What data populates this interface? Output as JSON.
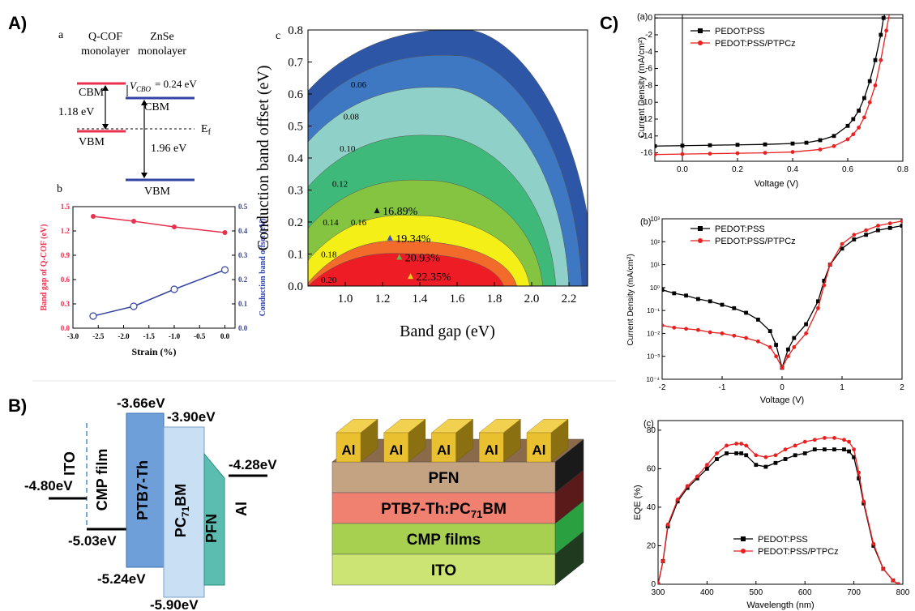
{
  "panel_labels": {
    "A": "A)",
    "B": "B)",
    "C": "C)"
  },
  "figA_a": {
    "label": "a",
    "col1": [
      "Q-COF",
      "monolayer"
    ],
    "col2": [
      "ZnSe",
      "monolayer"
    ],
    "cbm": "CBM",
    "vbm": "VBM",
    "vcbo": "= 0.24 eV",
    "gap1": "1.18 eV",
    "gap2": "1.96 eV",
    "ef": "E"
  },
  "figA_b": {
    "label": "b",
    "chart_data": {
      "type": "line",
      "xlabel": "Strain (%)",
      "ylabel_left": "Band gap of Q-COF (eV)",
      "ylabel_right": "Conduction band offset (eV)",
      "xlim": [
        -3.0,
        0.2
      ],
      "ylim_left": [
        0.0,
        1.5
      ],
      "ylim_right": [
        0.0,
        0.5
      ],
      "xticks": [
        "-3.0",
        "-2.5",
        "-2.0",
        "-1.5",
        "-1.0",
        "-0.5",
        "0.0"
      ],
      "yticks_left": [
        "0.0",
        "0.3",
        "0.6",
        "0.9",
        "1.2",
        "1.5"
      ],
      "yticks_right": [
        "0.0",
        "0.1",
        "0.2",
        "0.3",
        "0.4",
        "0.5"
      ],
      "series": [
        {
          "axis": "left",
          "x": [
            -2.6,
            -1.8,
            -1.0,
            0.0
          ],
          "y": [
            1.38,
            1.32,
            1.25,
            1.18
          ],
          "color": "#e8304f",
          "marker": "filled-circle"
        },
        {
          "axis": "right",
          "x": [
            -2.6,
            -1.8,
            -1.0,
            0.0
          ],
          "y": [
            0.05,
            0.09,
            0.16,
            0.24
          ],
          "color": "#3444a4",
          "marker": "open-circle"
        }
      ]
    }
  },
  "figA_c": {
    "label": "c",
    "chart_data": {
      "type": "heatmap",
      "xlabel": "Band gap (eV)",
      "ylabel": "Conduction band offset (eV)",
      "xlim": [
        0.8,
        2.3
      ],
      "ylim": [
        0.0,
        0.8
      ],
      "xticks": [
        "1.0",
        "1.2",
        "1.4",
        "1.6",
        "1.8",
        "2.0",
        "2.2"
      ],
      "yticks": [
        "0.0",
        "0.1",
        "0.2",
        "0.3",
        "0.4",
        "0.5",
        "0.6",
        "0.7",
        "0.8"
      ],
      "levels": [
        {
          "peak_x": 1.37,
          "peak_y": 0.1,
          "color": "#ee1c25"
        },
        {
          "peak_x": 1.37,
          "peak_y": 0.14,
          "color": "#f26b2b"
        },
        {
          "peak_x": 1.4,
          "peak_y": 0.22,
          "color": "#f5ef18"
        },
        {
          "peak_x": 1.45,
          "peak_y": 0.33,
          "color": "#85c441"
        },
        {
          "peak_x": 1.5,
          "peak_y": 0.47,
          "color": "#3fb97a"
        },
        {
          "peak_x": 1.55,
          "peak_y": 0.62,
          "color": "#8fd1c8"
        },
        {
          "peak_x": 1.6,
          "peak_y": 0.72,
          "color": "#3f78c2"
        },
        {
          "peak_x": 1.65,
          "peak_y": 0.8,
          "color": "#2d56a6"
        }
      ],
      "contour_labels": [
        {
          "text": "0.20",
          "x": 0.87,
          "y": 0.01
        },
        {
          "text": "0.18",
          "x": 0.87,
          "y": 0.09
        },
        {
          "text": "0.16",
          "x": 1.03,
          "y": 0.19
        },
        {
          "text": "0.14",
          "x": 0.88,
          "y": 0.19
        },
        {
          "text": "0.12",
          "x": 0.93,
          "y": 0.31
        },
        {
          "text": "0.10",
          "x": 0.97,
          "y": 0.42
        },
        {
          "text": "0.08",
          "x": 0.99,
          "y": 0.52
        },
        {
          "text": "0.06",
          "x": 1.03,
          "y": 0.62
        }
      ],
      "annotations": [
        {
          "text": "16.89%",
          "x": 1.17,
          "y": 0.235,
          "marker_color": "#111111"
        },
        {
          "text": "19.34%",
          "x": 1.24,
          "y": 0.15,
          "marker_color": "#3b4fc4"
        },
        {
          "text": "20.93%",
          "x": 1.29,
          "y": 0.09,
          "marker_color": "#5dbb4a"
        },
        {
          "text": "22.35%",
          "x": 1.35,
          "y": 0.03,
          "marker_color": "#e6d020"
        }
      ]
    }
  },
  "figB_left": {
    "ito": "ITO",
    "cmp": "CMP film",
    "ptb7": "PTB7-Th",
    "pc71": "PC",
    "pc71_sub": "71",
    "pc71_tail": "BM",
    "pfn": "PFN",
    "al": "Al",
    "levels": {
      "ito": "-4.80eV",
      "cmp": "-5.03eV",
      "ptb7_top": "-3.66eV",
      "pc71_top": "-3.90eV",
      "ptb7_bottom": "-5.24eV",
      "pc71_bottom": "-5.90eV",
      "al": "-4.28eV"
    }
  },
  "figB_right": {
    "electrodes": [
      "Al",
      "Al",
      "Al",
      "Al",
      "Al"
    ],
    "layers": [
      {
        "text": "PFN",
        "color": "#c4a383"
      },
      {
        "text": "PTB7-Th:PC",
        "sub": "71",
        "tail": "BM",
        "color": "#f08070"
      },
      {
        "text": "CMP films",
        "color": "#a8d050"
      },
      {
        "text": "ITO",
        "color": "#cce474"
      }
    ]
  },
  "figC_a": {
    "label": "(a)",
    "chart_data": {
      "type": "line",
      "xlabel": "Voltage (V)",
      "ylabel": "Current Density (mA/cm²)",
      "xlim": [
        -0.1,
        0.8
      ],
      "ylim": [
        -17,
        0.4
      ],
      "xticks": [
        "0.0",
        "0.2",
        "0.4",
        "0.6",
        "0.8"
      ],
      "yticks": [
        "0",
        "-2",
        "-4",
        "-6",
        "-8",
        "-10",
        "-12",
        "-14",
        "-16"
      ],
      "legend": "top-left",
      "series": [
        {
          "name": "PEDOT:PSS",
          "color": "#000000",
          "marker": "square",
          "x": [
            -0.1,
            0.0,
            0.1,
            0.2,
            0.3,
            0.4,
            0.45,
            0.5,
            0.55,
            0.6,
            0.62,
            0.64,
            0.66,
            0.68,
            0.7,
            0.72,
            0.73,
            0.75
          ],
          "y": [
            -15.2,
            -15.15,
            -15.1,
            -15.05,
            -15.0,
            -14.9,
            -14.8,
            -14.5,
            -14.0,
            -12.8,
            -12.0,
            -11.0,
            -9.5,
            -7.5,
            -5.0,
            -2.0,
            0.0,
            2.0
          ]
        },
        {
          "name": "PEDOT:PSS/PTPCz",
          "color": "#e82020",
          "marker": "circle",
          "x": [
            -0.1,
            0.0,
            0.1,
            0.2,
            0.3,
            0.4,
            0.5,
            0.55,
            0.6,
            0.62,
            0.64,
            0.66,
            0.68,
            0.7,
            0.72,
            0.74,
            0.76
          ],
          "y": [
            -16.2,
            -16.15,
            -16.1,
            -16.05,
            -16.0,
            -15.9,
            -15.6,
            -15.2,
            -14.4,
            -13.8,
            -13.0,
            -11.8,
            -10.0,
            -8.0,
            -5.0,
            -1.5,
            2.0
          ]
        }
      ]
    }
  },
  "figC_b": {
    "label": "(b)",
    "chart_data": {
      "type": "line",
      "xlabel": "Voltage (V)",
      "ylabel": "Current Density (mA/cm²)",
      "xlim": [
        -2,
        2
      ],
      "ylim_log10": [
        -4,
        3
      ],
      "xticks": [
        "-2",
        "-1",
        "0",
        "1",
        "2"
      ],
      "yticks": [
        "10⁻⁴",
        "10⁻³",
        "10⁻²",
        "10⁻¹",
        "10⁰",
        "10¹",
        "10²",
        "10³"
      ],
      "legend": "top-left",
      "series": [
        {
          "name": "PEDOT:PSS",
          "color": "#000000",
          "marker": "square",
          "x": [
            -2.0,
            -1.8,
            -1.6,
            -1.4,
            -1.2,
            -1.0,
            -0.8,
            -0.6,
            -0.4,
            -0.2,
            -0.1,
            0.0,
            0.1,
            0.2,
            0.4,
            0.6,
            0.7,
            0.8,
            1.0,
            1.2,
            1.4,
            1.6,
            1.8,
            2.0
          ],
          "log10_y": [
            -0.1,
            -0.25,
            -0.35,
            -0.5,
            -0.6,
            -0.75,
            -0.9,
            -1.1,
            -1.4,
            -1.9,
            -2.5,
            -3.5,
            -2.7,
            -2.2,
            -1.6,
            -0.6,
            0.3,
            1.0,
            1.7,
            2.1,
            2.3,
            2.5,
            2.6,
            2.7
          ]
        },
        {
          "name": "PEDOT:PSS/PTPCz",
          "color": "#e82020",
          "marker": "circle",
          "x": [
            -2.0,
            -1.8,
            -1.6,
            -1.4,
            -1.2,
            -1.0,
            -0.8,
            -0.6,
            -0.4,
            -0.2,
            -0.1,
            0.0,
            0.1,
            0.2,
            0.4,
            0.6,
            0.7,
            0.8,
            1.0,
            1.2,
            1.4,
            1.6,
            1.8,
            2.0
          ],
          "log10_y": [
            -1.65,
            -1.75,
            -1.8,
            -1.85,
            -1.95,
            -2.0,
            -2.1,
            -2.2,
            -2.35,
            -2.6,
            -3.0,
            -3.5,
            -3.0,
            -2.6,
            -2.0,
            -0.9,
            0.1,
            1.0,
            1.9,
            2.3,
            2.5,
            2.7,
            2.8,
            2.9
          ]
        }
      ]
    }
  },
  "figC_c": {
    "label": "(c)",
    "chart_data": {
      "type": "line",
      "xlabel": "Wavelength (nm)",
      "ylabel": "EQE (%)",
      "xlim": [
        300,
        800
      ],
      "ylim": [
        0,
        85
      ],
      "xticks": [
        "300",
        "400",
        "500",
        "600",
        "700",
        "800"
      ],
      "yticks": [
        "0",
        "20",
        "40",
        "60",
        "80"
      ],
      "legend": "bottom-center",
      "series": [
        {
          "name": "PEDOT:PSS",
          "color": "#000000",
          "marker": "square",
          "x": [
            300,
            310,
            320,
            340,
            360,
            380,
            400,
            420,
            440,
            460,
            470,
            480,
            500,
            520,
            540,
            560,
            580,
            600,
            620,
            640,
            660,
            680,
            690,
            700,
            710,
            720,
            740,
            760,
            780,
            790
          ],
          "y": [
            0,
            12,
            30,
            43,
            50,
            55,
            60,
            65,
            68,
            68,
            68,
            67,
            62,
            61,
            63,
            65,
            67,
            68,
            70,
            70,
            70,
            70,
            69,
            66,
            55,
            42,
            20,
            8,
            2,
            0
          ]
        },
        {
          "name": "PEDOT:PSS/PTPCz",
          "color": "#e82020",
          "marker": "circle",
          "x": [
            300,
            310,
            320,
            340,
            360,
            380,
            400,
            420,
            440,
            460,
            470,
            480,
            500,
            520,
            540,
            560,
            580,
            600,
            620,
            640,
            660,
            680,
            690,
            700,
            710,
            720,
            740,
            760,
            780,
            790
          ],
          "y": [
            0,
            12,
            31,
            44,
            51,
            56,
            62,
            68,
            72,
            73,
            73,
            72,
            67,
            66,
            67,
            70,
            72,
            74,
            75,
            76,
            76,
            75,
            74,
            70,
            58,
            43,
            21,
            8,
            2,
            0
          ]
        }
      ]
    }
  }
}
